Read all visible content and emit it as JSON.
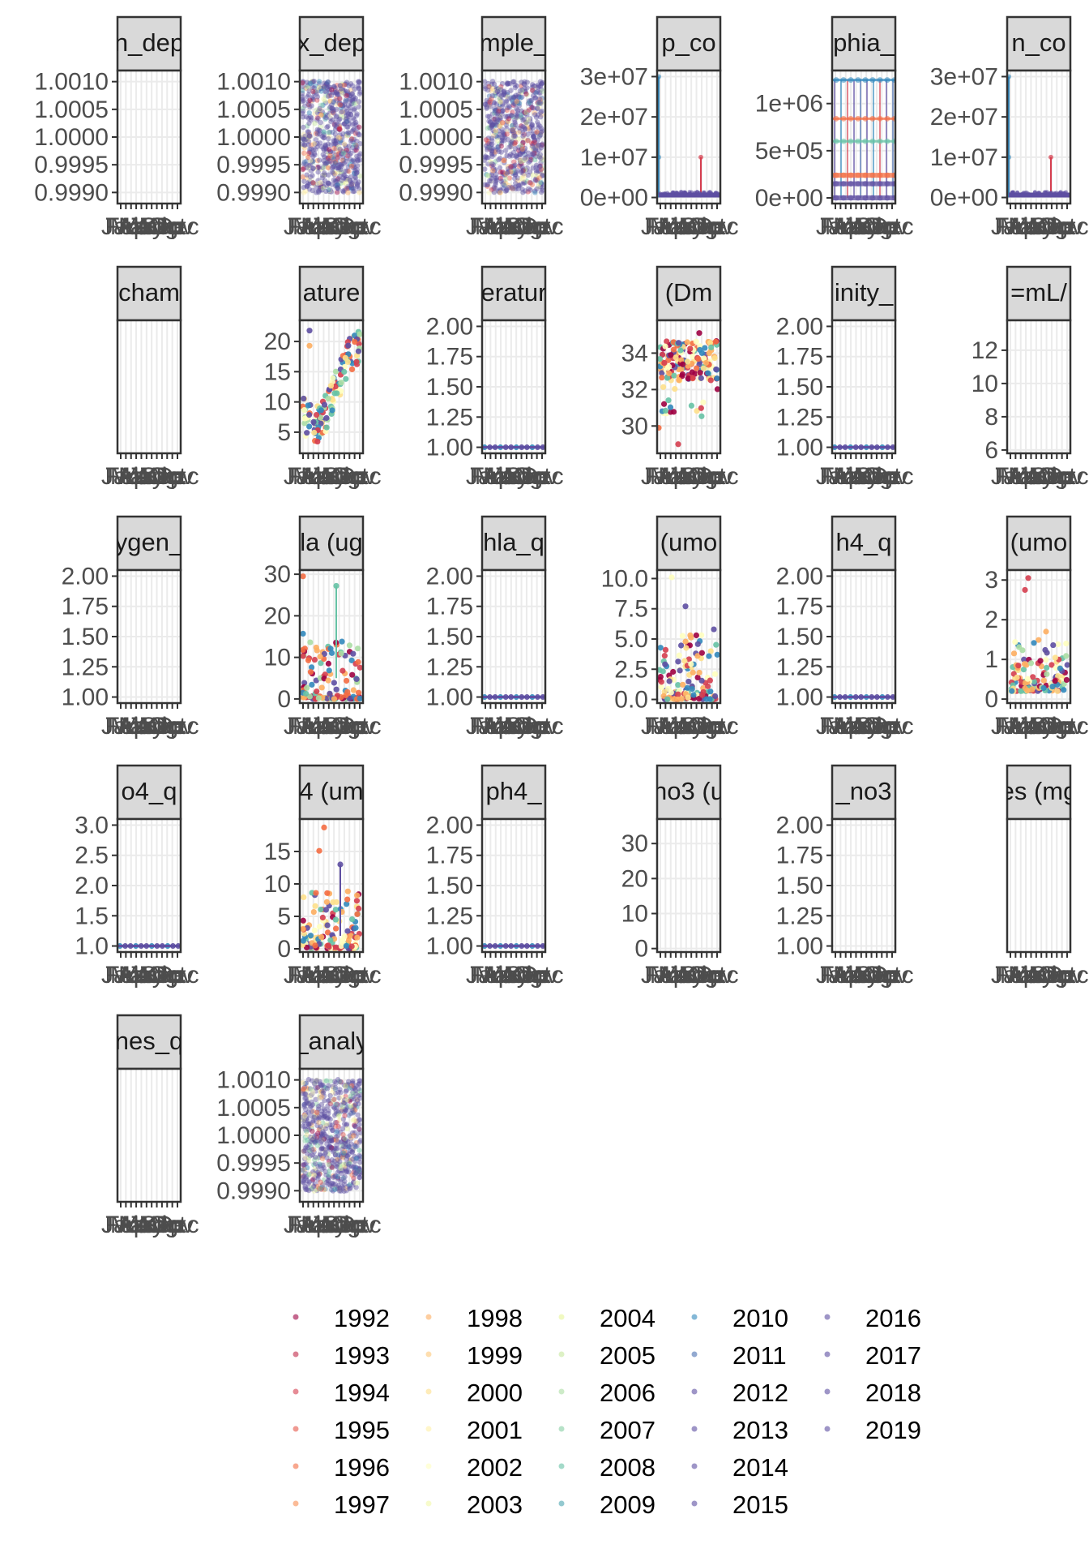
{
  "chart_data": {
    "type": "scatter",
    "facet_layout": "6 columns x 5 rows, strip titles clipped to panel width",
    "grid": true,
    "legend_placement": "bottom",
    "x_tick_labels": [
      "Jan",
      "Feb",
      "Mar",
      "Apr",
      "May",
      "Jun",
      "Jul",
      "Aug",
      "Sep",
      "Oct",
      "Nov",
      "Dec"
    ],
    "x_axis_text_shown": "Aprīgūsābyp",
    "palette": [
      "#9e0142",
      "#c2294a",
      "#d53e4f",
      "#e6574a",
      "#f46d43",
      "#f88d52",
      "#fdae61",
      "#fec87a",
      "#fee08b",
      "#fff0a6",
      "#ffffbf",
      "#f1f9a9",
      "#e6f598",
      "#c7e89e",
      "#abdda4",
      "#87cfa4",
      "#66c2a5",
      "#4ba5b1",
      "#3288bd",
      "#4a6fb0",
      "#5e4fa2",
      "#5e4fa2",
      "#5e4fa2",
      "#5e4fa2",
      "#5e4fa2",
      "#5e4fa2",
      "#5e4fa2",
      "#5e4fa2"
    ],
    "series": [
      {
        "name": "1992"
      },
      {
        "name": "1993"
      },
      {
        "name": "1994"
      },
      {
        "name": "1995"
      },
      {
        "name": "1996"
      },
      {
        "name": "1997"
      },
      {
        "name": "1998"
      },
      {
        "name": "1999"
      },
      {
        "name": "2000"
      },
      {
        "name": "2001"
      },
      {
        "name": "2002"
      },
      {
        "name": "2003"
      },
      {
        "name": "2004"
      },
      {
        "name": "2005"
      },
      {
        "name": "2006"
      },
      {
        "name": "2007"
      },
      {
        "name": "2008"
      },
      {
        "name": "2009"
      },
      {
        "name": "2010"
      },
      {
        "name": "2011"
      },
      {
        "name": "2012"
      },
      {
        "name": "2013"
      },
      {
        "name": "2014"
      },
      {
        "name": "2015"
      },
      {
        "name": "2016"
      },
      {
        "name": "2017"
      },
      {
        "name": "2018"
      },
      {
        "name": "2019"
      }
    ],
    "panels": [
      {
        "title": "n_dep",
        "ylim": [
          0.9988,
          1.0012
        ],
        "yticks": [
          "1.0010",
          "1.0005",
          "1.0000",
          "0.9995",
          "0.9990"
        ],
        "ytick_values": [
          1.001,
          1.0005,
          1.0,
          0.9995,
          0.999
        ],
        "pattern": "empty"
      },
      {
        "title": "x_dep",
        "ylim": [
          0.9988,
          1.0012
        ],
        "yticks": [
          "1.0010",
          "1.0005",
          "1.0000",
          "0.9995",
          "0.9990"
        ],
        "ytick_values": [
          1.001,
          1.0005,
          1.0,
          0.9995,
          0.999
        ],
        "pattern": "jitter_full"
      },
      {
        "title": "mple_",
        "ylim": [
          0.9988,
          1.0012
        ],
        "yticks": [
          "1.0010",
          "1.0005",
          "1.0000",
          "0.9995",
          "0.9990"
        ],
        "ytick_values": [
          1.001,
          1.0005,
          1.0,
          0.9995,
          0.999
        ],
        "pattern": "jitter_full"
      },
      {
        "title": "p_co",
        "ylim": [
          -1500000,
          31500000
        ],
        "yticks": [
          "3e+07",
          "2e+07",
          "1e+07",
          "0e+00"
        ],
        "ytick_values": [
          30000000,
          20000000,
          10000000,
          0
        ],
        "pattern": "spikes_large"
      },
      {
        "title": "phia_",
        "ylim": [
          -60000,
          1350000
        ],
        "yticks": [
          "1e+06",
          "5e+05",
          "0e+00"
        ],
        "ytick_values": [
          1000000,
          500000,
          0
        ],
        "pattern": "spikes_bands"
      },
      {
        "title": "n_co",
        "ylim": [
          -1500000,
          31500000
        ],
        "yticks": [
          "3e+07",
          "2e+07",
          "1e+07",
          "0e+00"
        ],
        "ytick_values": [
          30000000,
          20000000,
          10000000,
          0
        ],
        "pattern": "spikes_large"
      },
      {
        "title": "cham",
        "ylim": [
          0,
          1
        ],
        "yticks": [],
        "ytick_values": [],
        "pattern": "empty"
      },
      {
        "title": "ature",
        "ylim": [
          1.5,
          23.5
        ],
        "yticks": [
          "20",
          "15",
          "10",
          "5"
        ],
        "ytick_values": [
          20,
          15,
          10,
          5
        ],
        "pattern": "temperature"
      },
      {
        "title": "eratur",
        "ylim": [
          0.95,
          2.05
        ],
        "yticks": [
          "2.00",
          "1.75",
          "1.50",
          "1.25",
          "1.00"
        ],
        "ytick_values": [
          2.0,
          1.75,
          1.5,
          1.25,
          1.0
        ],
        "pattern": "line_at_one"
      },
      {
        "title": "(Dm",
        "ylim": [
          28.5,
          35.8
        ],
        "yticks": [
          "34",
          "32",
          "30"
        ],
        "ytick_values": [
          34,
          32,
          30
        ],
        "pattern": "salinity"
      },
      {
        "title": "inity_",
        "ylim": [
          0.95,
          2.05
        ],
        "yticks": [
          "2.00",
          "1.75",
          "1.50",
          "1.25",
          "1.00"
        ],
        "ytick_values": [
          2.0,
          1.75,
          1.5,
          1.25,
          1.0
        ],
        "pattern": "line_at_one"
      },
      {
        "title": "=mL/",
        "ylim": [
          5.8,
          13.8
        ],
        "yticks": [
          "12",
          "10",
          "8",
          "6"
        ],
        "ytick_values": [
          12,
          10,
          8,
          6
        ],
        "pattern": "empty"
      },
      {
        "title": "ygen_",
        "ylim": [
          0.95,
          2.05
        ],
        "yticks": [
          "2.00",
          "1.75",
          "1.50",
          "1.25",
          "1.00"
        ],
        "ytick_values": [
          2.0,
          1.75,
          1.5,
          1.25,
          1.0
        ],
        "pattern": "empty"
      },
      {
        "title": "la (ug",
        "ylim": [
          -1.0,
          31.0
        ],
        "yticks": [
          "30",
          "20",
          "10",
          "0"
        ],
        "ytick_values": [
          30,
          20,
          10,
          0
        ],
        "pattern": "chla"
      },
      {
        "title": "hla_q",
        "ylim": [
          0.95,
          2.05
        ],
        "yticks": [
          "2.00",
          "1.75",
          "1.50",
          "1.25",
          "1.00"
        ],
        "ytick_values": [
          2.0,
          1.75,
          1.5,
          1.25,
          1.0
        ],
        "pattern": "line_at_one"
      },
      {
        "title": "(umo",
        "ylim": [
          -0.3,
          10.7
        ],
        "yticks": [
          "10.0",
          "7.5",
          "5.0",
          "2.5",
          "0.0"
        ],
        "ytick_values": [
          10,
          7.5,
          5,
          2.5,
          0
        ],
        "pattern": "nutrient"
      },
      {
        "title": "h4_q",
        "ylim": [
          0.95,
          2.05
        ],
        "yticks": [
          "2.00",
          "1.75",
          "1.50",
          "1.25",
          "1.00"
        ],
        "ytick_values": [
          2.0,
          1.75,
          1.5,
          1.25,
          1.0
        ],
        "pattern": "line_at_one"
      },
      {
        "title": "(umo",
        "ylim": [
          -0.1,
          3.25
        ],
        "yticks": [
          "3",
          "2",
          "1",
          "0"
        ],
        "ytick_values": [
          3,
          2,
          1,
          0
        ],
        "pattern": "phosphate"
      },
      {
        "title": "o4_q",
        "ylim": [
          0.9,
          3.1
        ],
        "yticks": [
          "3.0",
          "2.5",
          "2.0",
          "1.5",
          "1.0"
        ],
        "ytick_values": [
          3.0,
          2.5,
          2.0,
          1.5,
          1.0
        ],
        "pattern": "line_at_one"
      },
      {
        "title": "4 (um",
        "ylim": [
          -0.5,
          20.0
        ],
        "yticks": [
          "15",
          "10",
          "5",
          "0"
        ],
        "ytick_values": [
          15,
          10,
          5,
          0
        ],
        "pattern": "silicate"
      },
      {
        "title": "ph4_",
        "ylim": [
          0.95,
          2.05
        ],
        "yticks": [
          "2.00",
          "1.75",
          "1.50",
          "1.25",
          "1.00"
        ],
        "ytick_values": [
          2.0,
          1.75,
          1.5,
          1.25,
          1.0
        ],
        "pattern": "line_at_one"
      },
      {
        "title": "no3 (u",
        "ylim": [
          -1.0,
          37.0
        ],
        "yticks": [
          "30",
          "20",
          "10",
          "0"
        ],
        "ytick_values": [
          30,
          20,
          10,
          0
        ],
        "pattern": "empty"
      },
      {
        "title": "_no3",
        "ylim": [
          0.95,
          2.05
        ],
        "yticks": [
          "2.00",
          "1.75",
          "1.50",
          "1.25",
          "1.00"
        ],
        "ytick_values": [
          2.0,
          1.75,
          1.5,
          1.25,
          1.0
        ],
        "pattern": "empty"
      },
      {
        "title": "es (mg",
        "ylim": [
          0,
          1
        ],
        "yticks": [],
        "ytick_values": [],
        "pattern": "empty"
      },
      {
        "title": "nes_q",
        "ylim": [
          0,
          1
        ],
        "yticks": [],
        "ytick_values": [],
        "pattern": "empty"
      },
      {
        "title": "_analy",
        "ylim": [
          0.9988,
          1.0012
        ],
        "yticks": [
          "1.0010",
          "1.0005",
          "1.0000",
          "0.9995",
          "0.9990"
        ],
        "ytick_values": [
          1.001,
          1.0005,
          1.0,
          0.9995,
          0.999
        ],
        "pattern": "jitter_full"
      }
    ]
  }
}
